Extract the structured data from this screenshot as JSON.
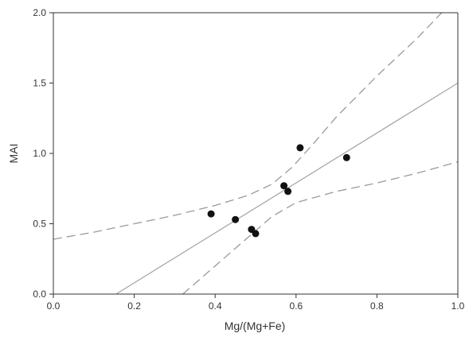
{
  "chart_data": {
    "type": "scatter",
    "title": "",
    "xlabel": "Mg/(Mg+Fe)",
    "ylabel": "MAI",
    "xlim": [
      0.0,
      1.0
    ],
    "ylim": [
      0.0,
      2.0
    ],
    "x_ticks": [
      "0.0",
      "0.2",
      "0.4",
      "0.6",
      "0.8",
      "1.0"
    ],
    "y_ticks": [
      "0.0",
      "0.5",
      "1.0",
      "1.5",
      "2.0"
    ],
    "grid": false,
    "legend": "none",
    "points": [
      {
        "x": 0.39,
        "y": 0.57
      },
      {
        "x": 0.45,
        "y": 0.53
      },
      {
        "x": 0.49,
        "y": 0.46
      },
      {
        "x": 0.5,
        "y": 0.43
      },
      {
        "x": 0.57,
        "y": 0.77
      },
      {
        "x": 0.58,
        "y": 0.73
      },
      {
        "x": 0.61,
        "y": 1.04
      },
      {
        "x": 0.725,
        "y": 0.97
      }
    ],
    "regression_line": {
      "points": [
        [
          0.155,
          0.0
        ],
        [
          1.0,
          1.5
        ]
      ]
    },
    "confidence_band_upper": {
      "points": [
        [
          0.0,
          0.39
        ],
        [
          0.1,
          0.44
        ],
        [
          0.2,
          0.5
        ],
        [
          0.3,
          0.56
        ],
        [
          0.4,
          0.63
        ],
        [
          0.48,
          0.7
        ],
        [
          0.54,
          0.78
        ],
        [
          0.59,
          0.9
        ],
        [
          0.64,
          1.06
        ],
        [
          0.7,
          1.26
        ],
        [
          0.8,
          1.55
        ],
        [
          0.9,
          1.82
        ],
        [
          0.96,
          2.0
        ]
      ]
    },
    "confidence_band_lower": {
      "points": [
        [
          0.32,
          0.0
        ],
        [
          0.4,
          0.2
        ],
        [
          0.48,
          0.4
        ],
        [
          0.54,
          0.55
        ],
        [
          0.6,
          0.65
        ],
        [
          0.7,
          0.73
        ],
        [
          0.8,
          0.79
        ],
        [
          0.9,
          0.86
        ],
        [
          1.0,
          0.94
        ]
      ]
    },
    "colors": {
      "points": "#111111",
      "regression": "#a8a8a8",
      "confidence": "#9a9a9a",
      "axis": "#333333"
    }
  }
}
